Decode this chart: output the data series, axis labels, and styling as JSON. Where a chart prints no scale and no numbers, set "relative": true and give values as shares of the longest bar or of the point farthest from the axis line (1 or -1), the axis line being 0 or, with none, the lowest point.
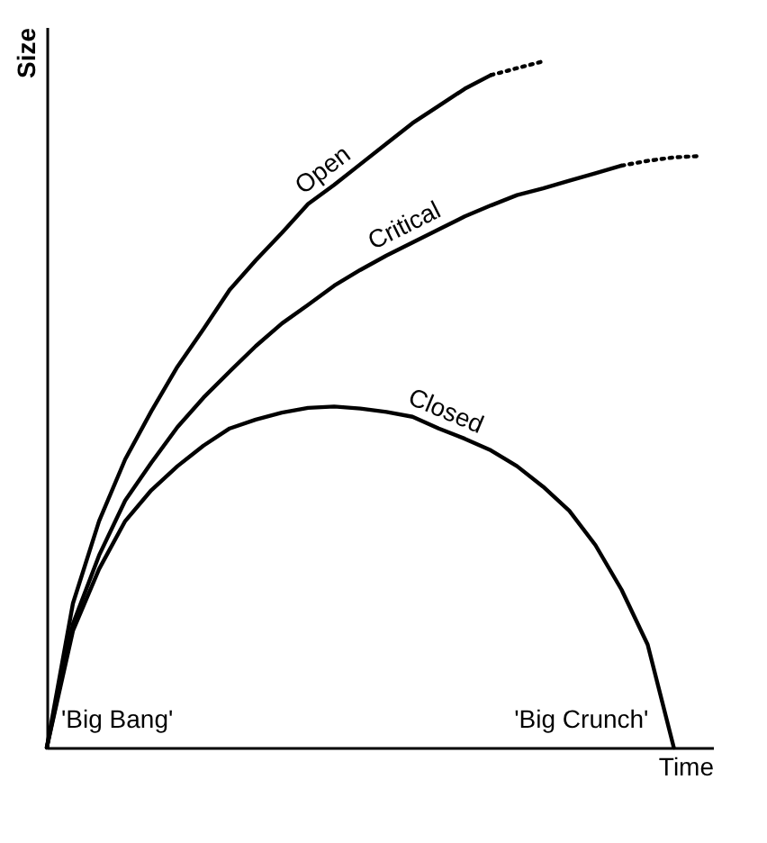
{
  "chart_data": {
    "type": "line",
    "relative": true,
    "xlabel": "Time",
    "ylabel": "Size",
    "grid": false,
    "marker": "none",
    "categories": [
      null,
      null,
      null,
      null,
      null,
      null,
      null,
      null,
      null,
      null,
      null,
      null,
      null,
      null,
      null,
      null,
      null,
      null,
      null,
      null,
      null,
      null,
      null,
      null,
      null,
      null
    ],
    "series": [
      {
        "name": "Open",
        "color": "#000000",
        "line_style": "solid",
        "values": [
          0,
          0.21,
          0.33,
          0.42,
          0.49,
          0.555,
          0.61,
          0.667,
          0.71,
          0.75,
          0.792,
          0.82,
          0.85,
          0.88,
          0.91,
          0.935,
          0.96,
          0.98,
          null,
          null,
          null,
          null,
          null,
          null,
          null,
          null
        ]
      },
      {
        "color": "#000000",
        "line_style": "dotted",
        "values": [
          null,
          null,
          null,
          null,
          null,
          null,
          null,
          null,
          null,
          null,
          null,
          null,
          null,
          null,
          null,
          null,
          null,
          0.98,
          0.99,
          1.0,
          null,
          null,
          null,
          null,
          null,
          null
        ]
      },
      {
        "name": "Critical",
        "color": "#000000",
        "line_style": "solid",
        "values": [
          0,
          0.18,
          0.28,
          0.36,
          0.415,
          0.467,
          0.51,
          0.548,
          0.585,
          0.618,
          0.645,
          0.673,
          0.696,
          0.717,
          0.736,
          0.755,
          0.774,
          0.79,
          0.805,
          0.815,
          0.826,
          0.837,
          0.848,
          null,
          null,
          null
        ]
      },
      {
        "color": "#000000",
        "line_style": "dotted",
        "values": [
          null,
          null,
          null,
          null,
          null,
          null,
          null,
          null,
          null,
          null,
          null,
          null,
          null,
          null,
          null,
          null,
          null,
          null,
          null,
          null,
          null,
          null,
          0.848,
          0.855,
          0.86,
          0.862
        ]
      },
      {
        "name": "Closed",
        "color": "#000000",
        "line_style": "solid",
        "values": [
          0,
          0.17,
          0.26,
          0.33,
          0.375,
          0.41,
          0.44,
          0.465,
          0.478,
          0.488,
          0.495,
          0.497,
          0.494,
          0.489,
          0.482,
          0.465,
          0.45,
          0.433,
          0.41,
          0.38,
          0.345,
          0.295,
          0.23,
          0.15,
          0,
          null
        ]
      }
    ],
    "annotations": [
      "'Big Bang'",
      "'Big Crunch'"
    ]
  }
}
